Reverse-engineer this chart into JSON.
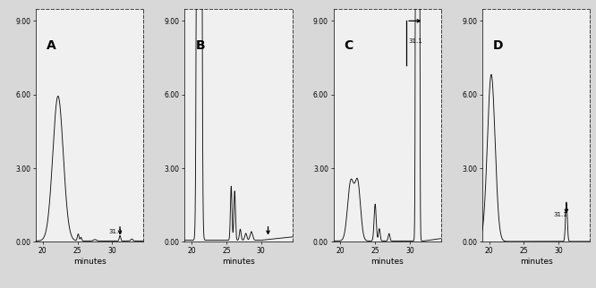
{
  "fig_width": 6.66,
  "fig_height": 3.22,
  "dpi": 100,
  "background_color": "#d8d8d8",
  "panel_bg": "#f0f0f0",
  "line_color": "#111111",
  "xlim": [
    19.0,
    34.5
  ],
  "ylim": [
    0.0,
    9.5
  ],
  "yticks": [
    0.0,
    3.0,
    6.0,
    9.0
  ],
  "ytick_labels": [
    "0.00",
    "3.00",
    "6.00",
    "9.00"
  ],
  "xticks": [
    20,
    25,
    30
  ],
  "xtick_labels": [
    "20",
    "25",
    "30"
  ],
  "xlabel": "minutes",
  "panels": [
    "A",
    "B",
    "C",
    "D"
  ]
}
